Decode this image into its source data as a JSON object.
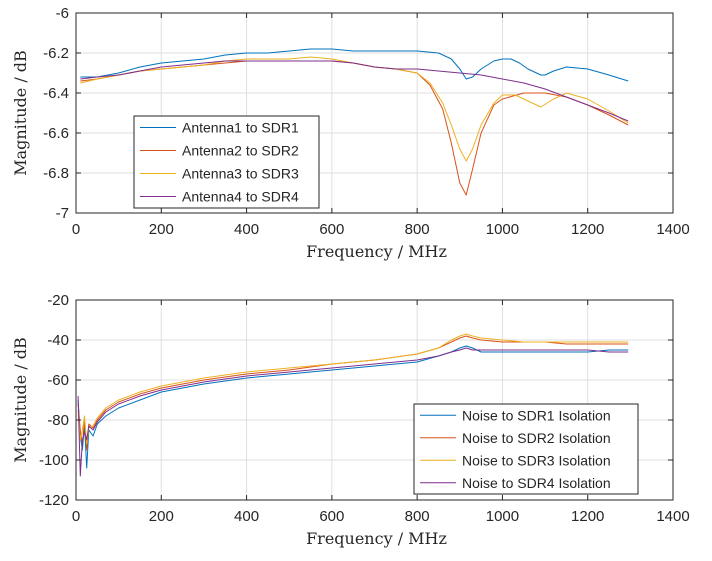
{
  "colors": {
    "series1": "#0072BD",
    "series2": "#D95319",
    "series3": "#EDB120",
    "series4": "#7E2F8E",
    "grid": "#dfdfdf",
    "axis": "#262626"
  },
  "chart_data": [
    {
      "type": "line",
      "xlabel": "Frequency / MHz",
      "ylabel": "Magnitude / dB",
      "xlim": [
        0,
        1400
      ],
      "ylim": [
        -7,
        -6
      ],
      "xticks": [
        0,
        200,
        400,
        600,
        800,
        1000,
        1200,
        1400
      ],
      "yticks": [
        -7,
        -6.8,
        -6.6,
        -6.4,
        -6.2,
        -6
      ],
      "xtick_labels": [
        "0",
        "200",
        "400",
        "600",
        "800",
        "1000",
        "1200",
        "1400"
      ],
      "ytick_labels": [
        "-7",
        "-6.8",
        "-6.6",
        "-6.4",
        "-6.2",
        "-6"
      ],
      "grid": true,
      "legend_position": "bottom-left",
      "series": [
        {
          "name": "Antenna1 to SDR1",
          "x": [
            10,
            50,
            100,
            150,
            200,
            250,
            300,
            350,
            400,
            450,
            500,
            550,
            600,
            650,
            700,
            750,
            800,
            850,
            880,
            900,
            915,
            930,
            950,
            980,
            1000,
            1020,
            1040,
            1060,
            1080,
            1090,
            1100,
            1120,
            1150,
            1200,
            1250,
            1295
          ],
          "y": [
            -6.32,
            -6.32,
            -6.3,
            -6.27,
            -6.25,
            -6.24,
            -6.23,
            -6.21,
            -6.2,
            -6.2,
            -6.19,
            -6.18,
            -6.18,
            -6.19,
            -6.19,
            -6.19,
            -6.19,
            -6.2,
            -6.23,
            -6.28,
            -6.33,
            -6.32,
            -6.28,
            -6.24,
            -6.23,
            -6.23,
            -6.25,
            -6.28,
            -6.3,
            -6.31,
            -6.31,
            -6.29,
            -6.27,
            -6.28,
            -6.31,
            -6.34
          ]
        },
        {
          "name": "Antenna2 to SDR2",
          "x": [
            10,
            50,
            100,
            150,
            200,
            250,
            300,
            350,
            400,
            450,
            500,
            550,
            600,
            650,
            700,
            750,
            800,
            830,
            860,
            880,
            900,
            915,
            930,
            950,
            980,
            1000,
            1050,
            1100,
            1150,
            1200,
            1250,
            1295
          ],
          "y": [
            -6.34,
            -6.33,
            -6.31,
            -6.29,
            -6.28,
            -6.27,
            -6.26,
            -6.25,
            -6.24,
            -6.24,
            -6.24,
            -6.24,
            -6.24,
            -6.25,
            -6.27,
            -6.28,
            -6.3,
            -6.36,
            -6.48,
            -6.65,
            -6.85,
            -6.91,
            -6.78,
            -6.6,
            -6.46,
            -6.43,
            -6.4,
            -6.4,
            -6.42,
            -6.46,
            -6.51,
            -6.56
          ]
        },
        {
          "name": "Antenna3 to SDR3",
          "x": [
            10,
            50,
            100,
            150,
            200,
            250,
            300,
            350,
            400,
            450,
            500,
            550,
            600,
            650,
            700,
            750,
            800,
            830,
            860,
            880,
            900,
            915,
            930,
            950,
            980,
            1000,
            1030,
            1060,
            1090,
            1120,
            1150,
            1200,
            1250,
            1295
          ],
          "y": [
            -6.35,
            -6.33,
            -6.31,
            -6.29,
            -6.28,
            -6.27,
            -6.26,
            -6.24,
            -6.23,
            -6.23,
            -6.23,
            -6.22,
            -6.23,
            -6.25,
            -6.27,
            -6.28,
            -6.3,
            -6.35,
            -6.45,
            -6.56,
            -6.68,
            -6.74,
            -6.68,
            -6.56,
            -6.45,
            -6.41,
            -6.41,
            -6.44,
            -6.47,
            -6.43,
            -6.4,
            -6.43,
            -6.49,
            -6.55
          ]
        },
        {
          "name": "Antenna4 to SDR4",
          "x": [
            10,
            50,
            100,
            150,
            200,
            250,
            300,
            350,
            400,
            450,
            500,
            550,
            600,
            650,
            700,
            750,
            800,
            850,
            900,
            950,
            1000,
            1050,
            1100,
            1150,
            1200,
            1250,
            1295
          ],
          "y": [
            -6.33,
            -6.32,
            -6.31,
            -6.29,
            -6.27,
            -6.26,
            -6.25,
            -6.24,
            -6.24,
            -6.24,
            -6.24,
            -6.24,
            -6.24,
            -6.25,
            -6.27,
            -6.28,
            -6.28,
            -6.29,
            -6.3,
            -6.31,
            -6.33,
            -6.35,
            -6.38,
            -6.42,
            -6.46,
            -6.5,
            -6.54
          ]
        }
      ]
    },
    {
      "type": "line",
      "xlabel": "Frequency / MHz",
      "ylabel": "Magnitude / dB",
      "xlim": [
        0,
        1400
      ],
      "ylim": [
        -120,
        -20
      ],
      "xticks": [
        0,
        200,
        400,
        600,
        800,
        1000,
        1200,
        1400
      ],
      "yticks": [
        -120,
        -100,
        -80,
        -60,
        -40,
        -20
      ],
      "xtick_labels": [
        "0",
        "200",
        "400",
        "600",
        "800",
        "1000",
        "1200",
        "1400"
      ],
      "ytick_labels": [
        "-120",
        "-100",
        "-80",
        "-60",
        "-40",
        "-20"
      ],
      "grid": true,
      "legend_position": "bottom-right",
      "series": [
        {
          "name": "Noise to SDR1 Isolation",
          "x": [
            5,
            10,
            15,
            20,
            25,
            30,
            40,
            50,
            70,
            100,
            150,
            200,
            300,
            400,
            500,
            600,
            700,
            800,
            850,
            880,
            900,
            915,
            930,
            950,
            1000,
            1050,
            1100,
            1150,
            1200,
            1250,
            1295
          ],
          "y": [
            -70,
            -88,
            -95,
            -82,
            -104,
            -85,
            -88,
            -82,
            -78,
            -74,
            -70,
            -66,
            -62,
            -59,
            -57,
            -55,
            -53,
            -51,
            -48,
            -46,
            -44,
            -43,
            -44,
            -46,
            -46,
            -46,
            -46,
            -46,
            -46,
            -45,
            -45
          ]
        },
        {
          "name": "Noise to SDR2 Isolation",
          "x": [
            5,
            10,
            15,
            20,
            25,
            30,
            40,
            50,
            70,
            100,
            150,
            200,
            300,
            400,
            500,
            600,
            700,
            800,
            850,
            880,
            900,
            915,
            930,
            950,
            1000,
            1050,
            1100,
            1150,
            1200,
            1250,
            1295
          ],
          "y": [
            -72,
            -85,
            -92,
            -80,
            -95,
            -82,
            -84,
            -80,
            -75,
            -71,
            -67,
            -64,
            -60,
            -57,
            -55,
            -52,
            -50,
            -47,
            -44,
            -41,
            -39,
            -38,
            -39,
            -40,
            -41,
            -41,
            -41,
            -42,
            -42,
            -42,
            -42
          ]
        },
        {
          "name": "Noise to SDR3 Isolation",
          "x": [
            5,
            10,
            15,
            20,
            25,
            30,
            40,
            50,
            70,
            100,
            150,
            200,
            300,
            400,
            500,
            600,
            700,
            800,
            850,
            880,
            900,
            915,
            930,
            950,
            1000,
            1050,
            1100,
            1150,
            1200,
            1250,
            1295
          ],
          "y": [
            -75,
            -90,
            -85,
            -78,
            -92,
            -84,
            -83,
            -79,
            -74,
            -70,
            -66,
            -63,
            -59,
            -56,
            -54,
            -52,
            -50,
            -47,
            -44,
            -40,
            -38,
            -37,
            -38,
            -39,
            -40,
            -41,
            -41,
            -41,
            -41,
            -41,
            -41
          ]
        },
        {
          "name": "Noise to SDR4 Isolation",
          "x": [
            5,
            10,
            15,
            20,
            25,
            30,
            40,
            50,
            70,
            100,
            150,
            200,
            300,
            400,
            500,
            600,
            700,
            800,
            850,
            880,
            900,
            915,
            930,
            950,
            1000,
            1050,
            1100,
            1150,
            1200,
            1250,
            1295
          ],
          "y": [
            -68,
            -108,
            -90,
            -86,
            -90,
            -83,
            -85,
            -81,
            -76,
            -72,
            -68,
            -65,
            -61,
            -58,
            -56,
            -54,
            -52,
            -50,
            -48,
            -46,
            -45,
            -44,
            -45,
            -45,
            -45,
            -45,
            -45,
            -45,
            -45,
            -46,
            -46
          ]
        }
      ]
    }
  ]
}
